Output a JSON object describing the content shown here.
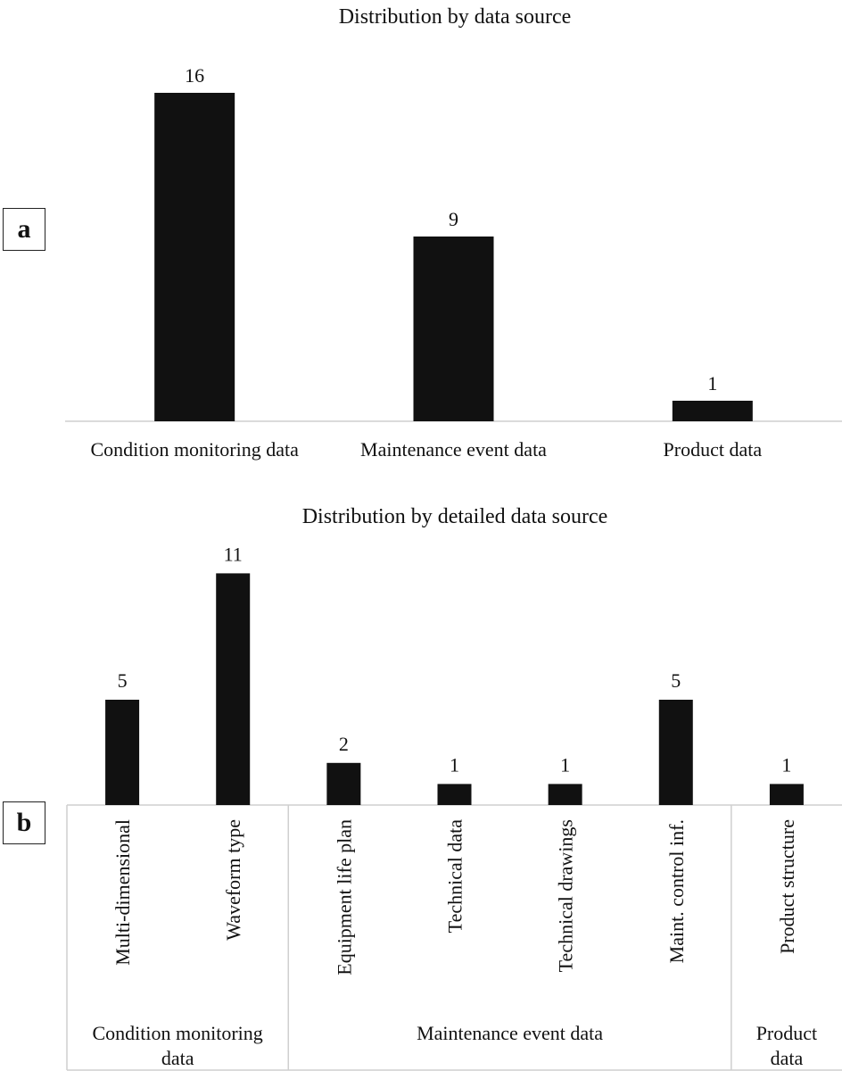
{
  "panels": {
    "a_label": "a",
    "b_label": "b"
  },
  "chart_data": [
    {
      "type": "bar",
      "title": "Distribution by data source",
      "categories": [
        "Condition monitoring data",
        "Maintenance event data",
        "Product data"
      ],
      "values": [
        16,
        9,
        1
      ],
      "bar_color": "#111111",
      "grid": false
    },
    {
      "type": "bar",
      "title": "Distribution by detailed data source",
      "categories": [
        "Multi-dimensional",
        "Waveform type",
        "Equipment life plan",
        "Technical data",
        "Technical drawings",
        "Maint. control inf.",
        "Product structure"
      ],
      "values": [
        5,
        11,
        2,
        1,
        1,
        5,
        1
      ],
      "groups": [
        {
          "label_lines": [
            "Condition monitoring",
            "data"
          ],
          "count": 2
        },
        {
          "label_lines": [
            "Maintenance event data"
          ],
          "count": 4
        },
        {
          "label_lines": [
            "Product",
            "data"
          ],
          "count": 1
        }
      ],
      "bar_color": "#111111",
      "grid": false
    }
  ]
}
